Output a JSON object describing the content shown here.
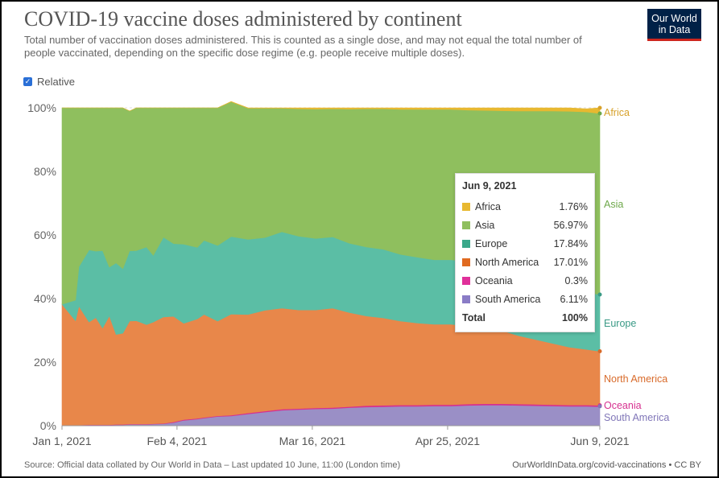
{
  "header": {
    "title": "COVID-19 vaccine doses administered by continent",
    "subtitle": "Total number of vaccination doses administered. This is counted as a single dose, and may not equal the total number of people vaccinated, depending on the specific dose regime (e.g. people receive multiple doses).",
    "logo_line1": "Our World",
    "logo_line2": "in Data"
  },
  "controls": {
    "relative_label": "Relative",
    "relative_checked": true
  },
  "chart_data": {
    "type": "area",
    "stacked": true,
    "relative": true,
    "ylim": [
      0,
      100
    ],
    "yticks": [
      "0%",
      "20%",
      "40%",
      "60%",
      "80%",
      "100%"
    ],
    "xticks": [
      "Jan 1, 2021",
      "Feb 4, 2021",
      "Mar 16, 2021",
      "Apr 25, 2021",
      "Jun 9, 2021"
    ],
    "x": [
      0,
      4,
      5,
      8,
      10,
      12,
      14,
      16,
      18,
      20,
      22,
      25,
      27,
      30,
      33,
      36,
      40,
      42,
      46,
      50,
      55,
      60,
      65,
      70,
      75,
      80,
      85,
      90,
      95,
      100,
      105,
      110,
      115,
      120,
      125,
      130,
      135,
      140,
      145,
      150,
      155,
      159
    ],
    "x_label_days": [
      0,
      34,
      74,
      114,
      159
    ],
    "series": [
      {
        "name": "South America",
        "color": "#9a8fc6",
        "values": [
          0.2,
          0.2,
          0.2,
          0.3,
          0.3,
          0.3,
          0.3,
          0.4,
          0.4,
          0.5,
          0.5,
          0.5,
          0.6,
          0.7,
          1.1,
          1.8,
          2.2,
          2.5,
          3.0,
          3.2,
          3.8,
          4.4,
          5.0,
          5.2,
          5.4,
          5.5,
          5.8,
          6.0,
          6.1,
          6.2,
          6.2,
          6.3,
          6.3,
          6.5,
          6.6,
          6.6,
          6.5,
          6.4,
          6.3,
          6.2,
          6.2,
          6.11
        ]
      },
      {
        "name": "Oceania",
        "color": "#d6308f",
        "values": [
          0.0,
          0.0,
          0.0,
          0.0,
          0.0,
          0.0,
          0.0,
          0.0,
          0.0,
          0.0,
          0.0,
          0.0,
          0.0,
          0.0,
          0.1,
          0.1,
          0.1,
          0.1,
          0.1,
          0.1,
          0.2,
          0.2,
          0.2,
          0.2,
          0.2,
          0.2,
          0.2,
          0.3,
          0.3,
          0.3,
          0.3,
          0.3,
          0.3,
          0.3,
          0.3,
          0.3,
          0.3,
          0.3,
          0.3,
          0.3,
          0.3,
          0.3
        ]
      },
      {
        "name": "North America",
        "color": "#e8874a",
        "values": [
          38.0,
          32.8,
          37.4,
          32.3,
          33.7,
          30.4,
          34.2,
          28.3,
          28.7,
          32.4,
          32.5,
          31.3,
          32.0,
          33.5,
          33.2,
          30.3,
          31.3,
          32.4,
          29.8,
          31.8,
          31.0,
          31.7,
          31.8,
          31.0,
          30.8,
          31.3,
          29.6,
          28.2,
          27.5,
          26.4,
          25.8,
          25.3,
          25.3,
          24.5,
          23.8,
          23.0,
          21.5,
          20.4,
          19.3,
          18.2,
          17.5,
          17.01
        ]
      },
      {
        "name": "Europe",
        "color": "#5bbea5",
        "values": [
          0.0,
          6.5,
          12.4,
          22.7,
          20.9,
          24.4,
          15.4,
          22.5,
          20.3,
          22.1,
          22.1,
          24.4,
          21.0,
          25.1,
          22.9,
          24.9,
          22.5,
          23.3,
          23.8,
          24.4,
          23.6,
          22.9,
          24.0,
          23.2,
          22.5,
          22.4,
          21.8,
          21.7,
          21.6,
          21.0,
          20.7,
          20.3,
          20.3,
          20.4,
          20.2,
          20.1,
          19.6,
          19.1,
          18.5,
          18.2,
          17.9,
          17.84
        ]
      },
      {
        "name": "Asia",
        "color": "#8fbf5e",
        "values": [
          61.8,
          60.5,
          50.0,
          44.7,
          45.1,
          44.9,
          50.1,
          48.8,
          50.6,
          44.0,
          44.9,
          43.8,
          46.4,
          40.7,
          42.7,
          42.9,
          43.9,
          41.7,
          43.3,
          42.4,
          41.3,
          40.7,
          38.9,
          40.1,
          40.7,
          40.3,
          42.2,
          43.5,
          44.2,
          45.6,
          46.5,
          47.3,
          47.3,
          47.6,
          48.3,
          49.1,
          51.1,
          52.8,
          54.6,
          56.0,
          56.8,
          56.97
        ]
      },
      {
        "name": "Africa",
        "color": "#e8b830",
        "values": [
          0.0,
          0.0,
          0.0,
          0.0,
          0.0,
          0.0,
          0.0,
          0.0,
          0.0,
          0.0,
          0.0,
          0.0,
          0.0,
          0.0,
          0.0,
          0.0,
          0.0,
          0.0,
          0.0,
          0.1,
          0.1,
          0.1,
          0.1,
          0.3,
          0.4,
          0.3,
          0.4,
          0.3,
          0.3,
          0.5,
          0.5,
          0.5,
          0.5,
          0.7,
          0.8,
          0.9,
          1.0,
          1.0,
          1.0,
          1.1,
          1.0,
          1.76
        ]
      }
    ],
    "end_labels": [
      {
        "name": "Africa",
        "label": "Africa",
        "color": "#d7a12a"
      },
      {
        "name": "Asia",
        "label": "Asia",
        "color": "#6ea84a"
      },
      {
        "name": "Europe",
        "label": "Europe",
        "color": "#3a9a86"
      },
      {
        "name": "North America",
        "label": "North America",
        "color": "#d86a2a"
      },
      {
        "name": "Oceania",
        "label": "Oceania",
        "color": "#d6308f"
      },
      {
        "name": "South America",
        "label": "South America",
        "color": "#8076b8"
      }
    ]
  },
  "tooltip": {
    "date": "Jun 9, 2021",
    "rows": [
      {
        "name": "Africa",
        "value": "1.76%",
        "color": "#e8b830"
      },
      {
        "name": "Asia",
        "value": "56.97%",
        "color": "#8fbf5e"
      },
      {
        "name": "Europe",
        "value": "17.84%",
        "color": "#3aa88a"
      },
      {
        "name": "North America",
        "value": "17.01%",
        "color": "#e06a20"
      },
      {
        "name": "Oceania",
        "value": "0.3%",
        "color": "#e0309a"
      },
      {
        "name": "South America",
        "value": "6.11%",
        "color": "#8a7cc6"
      }
    ],
    "total_label": "Total",
    "total_value": "100%"
  },
  "footer": {
    "source": "Source: Official data collated by Our World in Data – Last updated 10 June, 11:00 (London time)",
    "link": "OurWorldInData.org/covid-vaccinations • CC BY"
  }
}
